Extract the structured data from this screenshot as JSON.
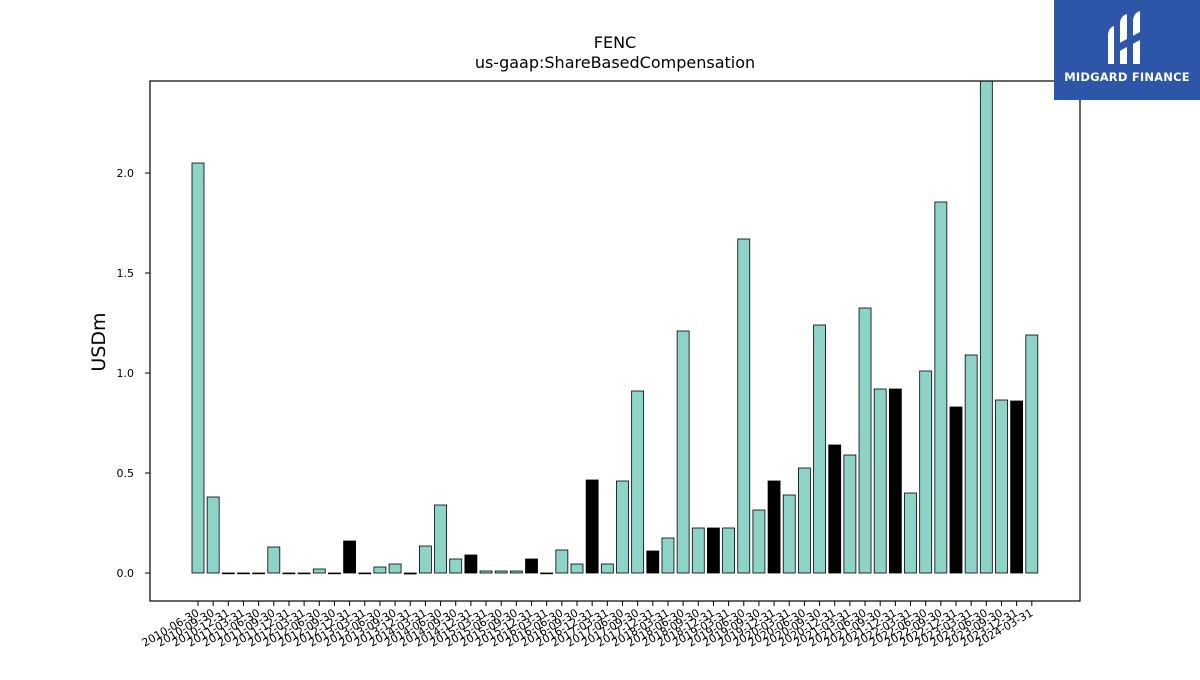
{
  "chart_data": {
    "type": "bar",
    "title": "FENC",
    "subtitle": "us-gaap:ShareBasedCompensation",
    "xlabel": "",
    "ylabel": "USDm",
    "ylim": [
      -0.14,
      2.46
    ],
    "yticks": [
      0.0,
      0.5,
      1.0,
      1.5,
      2.0
    ],
    "ytick_labels": [
      "0.0",
      "0.5",
      "1.0",
      "1.5",
      "2.0"
    ],
    "grid": false,
    "legend": "none",
    "colors": {
      "default": "#8dd3c7",
      "highlight": "#000000",
      "edge": "#000000"
    },
    "categories": [
      "2010-06-30",
      "2010-09-30",
      "2010-12-31",
      "2011-03-31",
      "2011-06-30",
      "2011-09-30",
      "2011-12-31",
      "2012-03-31",
      "2012-06-30",
      "2012-09-30",
      "2012-12-31",
      "2013-03-31",
      "2013-06-30",
      "2013-09-30",
      "2013-12-31",
      "2014-03-31",
      "2014-06-30",
      "2014-09-30",
      "2014-12-31",
      "2015-03-31",
      "2015-06-30",
      "2015-09-30",
      "2015-12-31",
      "2016-03-31",
      "2016-06-30",
      "2016-09-30",
      "2016-12-31",
      "2017-03-31",
      "2017-06-30",
      "2017-09-30",
      "2017-12-31",
      "2018-03-31",
      "2018-06-30",
      "2018-09-30",
      "2018-12-31",
      "2019-03-31",
      "2019-06-30",
      "2019-09-30",
      "2019-12-31",
      "2020-03-31",
      "2020-06-30",
      "2020-09-30",
      "2020-12-31",
      "2021-03-31",
      "2021-06-30",
      "2021-09-30",
      "2021-12-31",
      "2022-03-31",
      "2022-06-30",
      "2022-09-30",
      "2022-12-31",
      "2023-03-31",
      "2023-06-30",
      "2023-09-30",
      "2023-12-31",
      "2024-03-31"
    ],
    "values": [
      2.05,
      0.38,
      0.0,
      0.0,
      0.0,
      0.13,
      0.0,
      0.0,
      0.02,
      0.0,
      0.16,
      0.0,
      0.03,
      0.045,
      -0.005,
      0.135,
      0.34,
      0.07,
      0.09,
      0.01,
      0.01,
      0.01,
      0.07,
      0.0,
      0.115,
      0.045,
      0.465,
      0.045,
      0.46,
      0.91,
      0.11,
      0.175,
      1.21,
      0.225,
      0.225,
      0.225,
      1.67,
      0.315,
      0.46,
      0.39,
      0.525,
      1.24,
      0.64,
      0.59,
      1.325,
      0.92,
      0.92,
      0.4,
      1.01,
      1.855,
      0.83,
      1.09,
      2.47,
      0.865,
      0.86,
      1.19
    ],
    "highlight": [
      false,
      false,
      false,
      false,
      false,
      false,
      false,
      false,
      false,
      false,
      true,
      false,
      false,
      false,
      true,
      false,
      false,
      false,
      true,
      false,
      false,
      false,
      true,
      false,
      false,
      false,
      true,
      false,
      false,
      false,
      true,
      false,
      false,
      false,
      true,
      false,
      false,
      false,
      true,
      false,
      false,
      false,
      true,
      false,
      false,
      false,
      true,
      false,
      false,
      false,
      true,
      false,
      false,
      false,
      true,
      false
    ]
  },
  "watermark": {
    "brand": "MIDGARD FINANCE"
  }
}
